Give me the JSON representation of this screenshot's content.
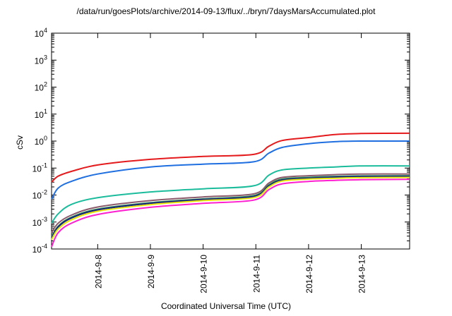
{
  "chart_data": {
    "type": "line",
    "title": "/data/run/goesPlots/archive/2014-09-13/flux/../bryn/7daysMarsAccumulated.plot",
    "xlabel": "Coordinated Universal Time (UTC)",
    "ylabel": "cSv",
    "yscale": "log",
    "ylim": [
      0.0001,
      10000
    ],
    "xlim": [
      "2014-09-07 03:00",
      "2014-09-13 22:00"
    ],
    "y_ticks": [
      {
        "value": 0.0001,
        "base": "10",
        "exp": "-4"
      },
      {
        "value": 0.001,
        "base": "10",
        "exp": "-3"
      },
      {
        "value": 0.01,
        "base": "10",
        "exp": "-2"
      },
      {
        "value": 0.1,
        "base": "10",
        "exp": "-1"
      },
      {
        "value": 1,
        "base": "10",
        "exp": "0"
      },
      {
        "value": 10,
        "base": "10",
        "exp": "1"
      },
      {
        "value": 100,
        "base": "10",
        "exp": "2"
      },
      {
        "value": 1000,
        "base": "10",
        "exp": "3"
      },
      {
        "value": 10000,
        "base": "10",
        "exp": "4"
      }
    ],
    "x_ticks": [
      "2014-9-8",
      "2014-9-9",
      "2014-9-10",
      "2014-9-11",
      "2014-9-12",
      "2014-9-13"
    ],
    "x": [
      "2014-09-07 03:00",
      "2014-09-07 06:00",
      "2014-09-07 12:00",
      "2014-09-08 00:00",
      "2014-09-09 00:00",
      "2014-09-10 00:00",
      "2014-09-10 23:00",
      "2014-09-11 06:00",
      "2014-09-11 12:00",
      "2014-09-12 00:00",
      "2014-09-12 12:00",
      "2014-09-13 00:00",
      "2014-09-13 22:00"
    ],
    "grid": false,
    "series": [
      {
        "color": "#e41a1c",
        "values": [
          0.03,
          0.05,
          0.075,
          0.13,
          0.21,
          0.27,
          0.32,
          0.65,
          1.05,
          1.35,
          1.75,
          1.9,
          1.95
        ]
      },
      {
        "color": "#1f6fe0",
        "values": [
          0.007,
          0.018,
          0.032,
          0.06,
          0.11,
          0.14,
          0.17,
          0.36,
          0.58,
          0.8,
          0.95,
          1.0,
          1.0
        ]
      },
      {
        "color": "#1abc9c",
        "values": [
          0.0009,
          0.002,
          0.0045,
          0.008,
          0.013,
          0.017,
          0.022,
          0.055,
          0.085,
          0.1,
          0.11,
          0.12,
          0.12
        ]
      },
      {
        "color": "#8b5a6b",
        "values": [
          0.0004,
          0.0009,
          0.0018,
          0.0036,
          0.0062,
          0.0085,
          0.011,
          0.028,
          0.045,
          0.052,
          0.057,
          0.06,
          0.06
        ]
      },
      {
        "color": "#2e8b57",
        "values": [
          0.00028,
          0.0007,
          0.0015,
          0.003,
          0.0052,
          0.0072,
          0.0095,
          0.024,
          0.039,
          0.045,
          0.049,
          0.051,
          0.052
        ]
      },
      {
        "color": "#1a237e",
        "values": [
          0.00025,
          0.00065,
          0.0014,
          0.0028,
          0.0049,
          0.0068,
          0.0088,
          0.022,
          0.036,
          0.042,
          0.046,
          0.048,
          0.049
        ]
      },
      {
        "color": "#e8e80a",
        "values": [
          0.00022,
          0.00055,
          0.0012,
          0.0025,
          0.0044,
          0.0062,
          0.008,
          0.02,
          0.033,
          0.039,
          0.042,
          0.044,
          0.045
        ]
      },
      {
        "color": "#ff1fcf",
        "values": [
          0.00012,
          0.0004,
          0.0009,
          0.0019,
          0.0035,
          0.0049,
          0.0065,
          0.016,
          0.026,
          0.032,
          0.035,
          0.037,
          0.038
        ]
      }
    ]
  }
}
